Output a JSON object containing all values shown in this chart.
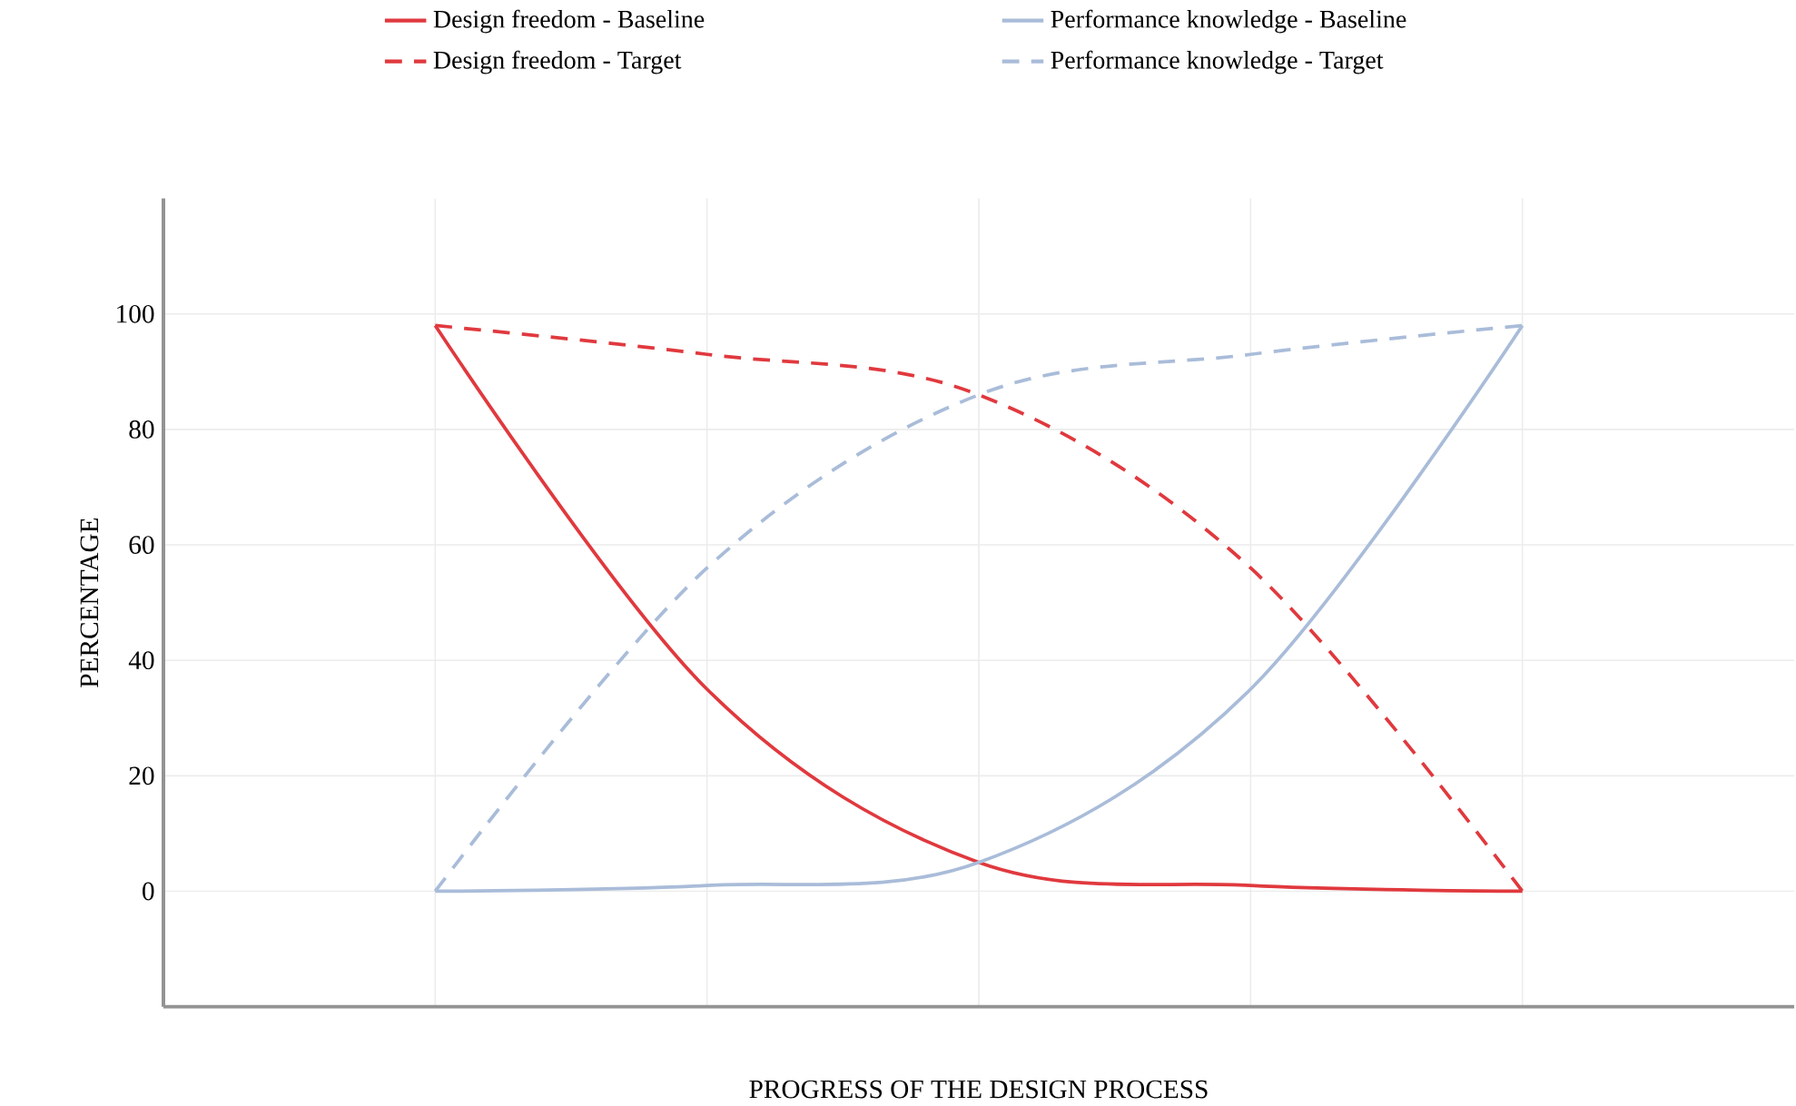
{
  "chart_data": {
    "type": "line",
    "xlabel": "PROGRESS OF THE DESIGN PROCESS",
    "ylabel": "PERCENTAGE",
    "categories": [
      null,
      null,
      null,
      null,
      null
    ],
    "ylim": [
      -20,
      120
    ],
    "yticks": [
      0,
      20,
      40,
      60,
      80,
      100
    ],
    "grid": true,
    "legend": "top",
    "marker": "none",
    "series": [
      {
        "name": "Design freedom - Baseline",
        "color": "#e0393e",
        "line_style": "solid",
        "values": [
          98,
          35,
          5,
          1,
          0
        ]
      },
      {
        "name": "Performance knowledge - Baseline",
        "color": "#a9bcd9",
        "line_style": "solid",
        "values": [
          0,
          1,
          5,
          35,
          98
        ]
      },
      {
        "name": "Design freedom - Target",
        "color": "#e0393e",
        "line_style": "dashed",
        "values": [
          98,
          93,
          86,
          56,
          0
        ]
      },
      {
        "name": "Performance knowledge - Target",
        "color": "#a9bcd9",
        "line_style": "dashed",
        "values": [
          0,
          56,
          86,
          93,
          98
        ]
      }
    ]
  }
}
